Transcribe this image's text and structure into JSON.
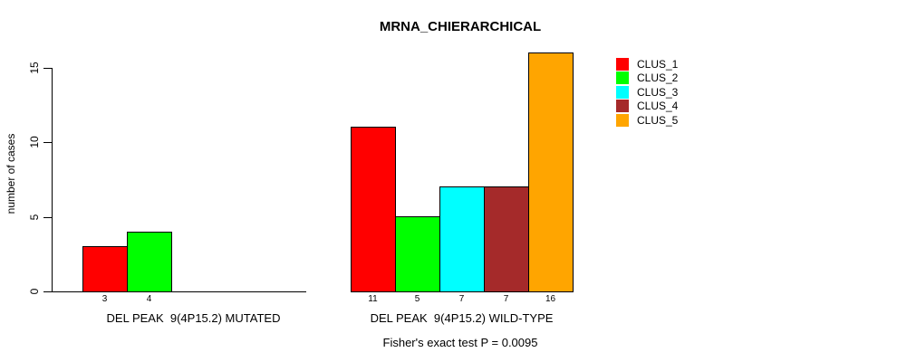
{
  "chart_data": {
    "type": "bar",
    "title": "MRNA_CHIERARCHICAL",
    "ylabel": "number of cases",
    "xlabel": "",
    "yticks": [
      0,
      5,
      10,
      15
    ],
    "ylim": [
      0,
      16.5
    ],
    "grid": false,
    "legend_position": "right-outside",
    "categories": [
      "DEL PEAK  9(4P15.2) MUTATED",
      "DEL PEAK  9(4P15.2) WILD-TYPE"
    ],
    "series": [
      {
        "name": "CLUS_1",
        "color": "#FF0000",
        "values": [
          3,
          11
        ]
      },
      {
        "name": "CLUS_2",
        "color": "#00FF00",
        "values": [
          4,
          5
        ]
      },
      {
        "name": "CLUS_3",
        "color": "#00FFFF",
        "values": [
          0,
          7
        ]
      },
      {
        "name": "CLUS_4",
        "color": "#A52A2A",
        "values": [
          0,
          7
        ]
      },
      {
        "name": "CLUS_5",
        "color": "#FFA500",
        "values": [
          0,
          16
        ]
      }
    ],
    "bar_value_labels": {
      "mutated": [
        3,
        4
      ],
      "wild_type": [
        11,
        5,
        7,
        7,
        16
      ]
    },
    "annotation": "Fisher's exact test P = 0.0095"
  }
}
